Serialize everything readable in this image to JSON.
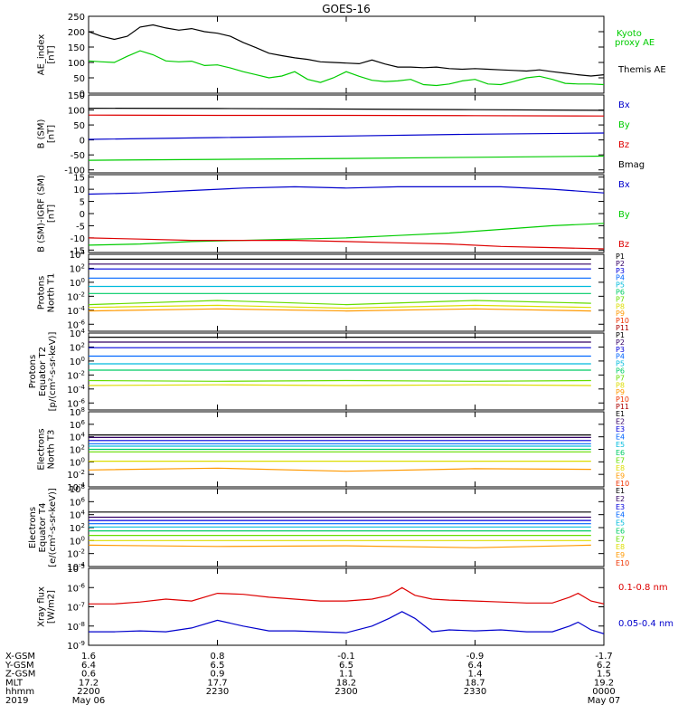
{
  "title": "GOES-16",
  "colors": {
    "black": "#000000",
    "green": "#00cc00",
    "blue": "#0000cc",
    "red": "#dd0000",
    "pcolors": [
      "#000000",
      "#330066",
      "#0000dd",
      "#0066ff",
      "#00bbdd",
      "#00cc66",
      "#66dd00",
      "#dddd00",
      "#ff9900",
      "#ee3300",
      "#aa0000"
    ],
    "ecolors": [
      "#000000",
      "#330066",
      "#0000dd",
      "#0066ff",
      "#00bbdd",
      "#00cc66",
      "#66dd00",
      "#dddd00",
      "#ff9900",
      "#ee3300"
    ]
  },
  "time_axis": {
    "ticks": [
      "2200",
      "2230",
      "2300",
      "2330",
      "0000"
    ],
    "rows": [
      {
        "label": "X-GSM",
        "values": [
          "1.6",
          "0.8",
          "-0.1",
          "-0.9",
          "-1.7"
        ]
      },
      {
        "label": "Y-GSM",
        "values": [
          "6.4",
          "6.5",
          "6.5",
          "6.4",
          "6.2"
        ]
      },
      {
        "label": "Z-GSM",
        "values": [
          "0.6",
          "0.9",
          "1.1",
          "1.4",
          "1.5"
        ]
      },
      {
        "label": "MLT",
        "values": [
          "17.2",
          "17.7",
          "18.2",
          "18.7",
          "19.2"
        ]
      },
      {
        "label": "hhmm",
        "values": [
          "2200",
          "2230",
          "2300",
          "2330",
          "0000"
        ]
      },
      {
        "label": "2019",
        "values": [
          "May 06",
          "",
          "",
          "",
          "May 07"
        ]
      }
    ]
  },
  "chart_data": [
    {
      "type": "line",
      "ylabel": [
        "AE_index",
        "[nT]"
      ],
      "ylim": [
        0,
        250
      ],
      "yticks": [
        "0",
        "50",
        "100",
        "150",
        "200",
        "250"
      ],
      "legend": [
        "Kyoto",
        "proxy AE",
        "Themis AE"
      ],
      "x_minutes": [
        0,
        3,
        6,
        9,
        12,
        15,
        18,
        21,
        24,
        27,
        30,
        33,
        36,
        39,
        42,
        45,
        48,
        51,
        54,
        57,
        60,
        63,
        66,
        69,
        72,
        75,
        78,
        81,
        84,
        87,
        90,
        93,
        96,
        99,
        102,
        105,
        108,
        111,
        114,
        117,
        120
      ],
      "series": [
        {
          "name": "Themis AE",
          "values": [
            200,
            185,
            175,
            185,
            215,
            222,
            212,
            205,
            210,
            200,
            195,
            185,
            165,
            148,
            130,
            122,
            115,
            110,
            102,
            100,
            98,
            96,
            108,
            95,
            85,
            85,
            83,
            85,
            80,
            78,
            80,
            78,
            76,
            74,
            72,
            76,
            70,
            65,
            60,
            56,
            60
          ]
        },
        {
          "name": "Kyoto proxy AE",
          "values": [
            105,
            102,
            100,
            120,
            138,
            125,
            105,
            102,
            104,
            90,
            92,
            82,
            70,
            60,
            50,
            56,
            70,
            45,
            35,
            50,
            70,
            55,
            42,
            38,
            40,
            45,
            28,
            25,
            30,
            40,
            45,
            30,
            28,
            38,
            50,
            55,
            45,
            32,
            30,
            30,
            28
          ]
        }
      ]
    },
    {
      "type": "line",
      "ylabel": [
        "B (SM)",
        "[nT]"
      ],
      "ylim": [
        -110,
        150
      ],
      "yticks": [
        "-100",
        "-50",
        "0",
        "50",
        "100",
        "150"
      ],
      "legend": [
        "Bx",
        "By",
        "Bz",
        "Bmag"
      ],
      "x_minutes": [
        0,
        30,
        60,
        90,
        120
      ],
      "series": [
        {
          "name": "Bx",
          "values": [
            2,
            8,
            13,
            19,
            23
          ]
        },
        {
          "name": "By",
          "values": [
            -68,
            -65,
            -62,
            -58,
            -54
          ]
        },
        {
          "name": "Bz",
          "values": [
            83,
            82,
            82,
            81,
            80
          ]
        },
        {
          "name": "Bmag",
          "values": [
            106,
            105,
            103,
            101,
            99
          ]
        }
      ]
    },
    {
      "type": "line",
      "ylabel": [
        "B (SM)-IGRF (SM)",
        "[nT]"
      ],
      "ylim": [
        -16,
        16
      ],
      "yticks": [
        "-15",
        "-10",
        "-5",
        "0",
        "5",
        "10",
        "15"
      ],
      "legend": [
        "Bx",
        "By",
        "Bz"
      ],
      "x_minutes": [
        0,
        12,
        24,
        36,
        48,
        60,
        72,
        84,
        96,
        108,
        120
      ],
      "series": [
        {
          "name": "Bx",
          "values": [
            8,
            8.5,
            9.5,
            10.5,
            11,
            10.5,
            11,
            11,
            11,
            10,
            8.5
          ]
        },
        {
          "name": "By",
          "values": [
            -13,
            -12.5,
            -11.5,
            -11,
            -10.5,
            -10,
            -9,
            -8,
            -6.5,
            -5,
            -4
          ]
        },
        {
          "name": "Bz",
          "values": [
            -10,
            -10.5,
            -11,
            -11,
            -11,
            -11.5,
            -12,
            -12.5,
            -13.5,
            -14,
            -14.5
          ]
        }
      ]
    },
    {
      "type": "line",
      "ylabel": [
        "Protons",
        "North T1"
      ],
      "yscale": "log",
      "ylim": [
        -7,
        4
      ],
      "yticks_exp": [
        4,
        2,
        0,
        -2,
        -4,
        -6
      ],
      "legend": [
        "P1",
        "P2",
        "P3",
        "P4",
        "P5",
        "P6",
        "P7",
        "P8",
        "P9",
        "P10",
        "P11"
      ],
      "x_minutes": [
        0,
        30,
        60,
        90,
        117
      ],
      "series": [
        {
          "name": "P1",
          "values": [
            3.3,
            3.3,
            3.3,
            3.3,
            3.3
          ]
        },
        {
          "name": "P2",
          "values": [
            2.6,
            2.6,
            2.6,
            2.6,
            2.6
          ]
        },
        {
          "name": "P3",
          "values": [
            1.9,
            1.9,
            1.9,
            1.9,
            1.9
          ]
        },
        {
          "name": "P4",
          "values": [
            0.6,
            0.6,
            0.6,
            0.6,
            0.6
          ]
        },
        {
          "name": "P5",
          "values": [
            -0.6,
            -0.6,
            -0.6,
            -0.6,
            -0.6
          ]
        },
        {
          "name": "P6",
          "values": [
            -1.6,
            -1.6,
            -1.6,
            -1.6,
            -1.6
          ]
        },
        {
          "name": "P7",
          "values": [
            -3.2,
            -2.6,
            -3.2,
            -2.6,
            -3.0
          ]
        },
        {
          "name": "P8",
          "values": [
            -3.6,
            -3.3,
            -3.7,
            -3.3,
            -3.6
          ]
        },
        {
          "name": "P9",
          "values": [
            -4.1,
            -3.8,
            -4.1,
            -3.8,
            -4.1
          ]
        }
      ]
    },
    {
      "type": "line",
      "ylabel": [
        "Protons",
        "Equator T2",
        "[p/(cm²-s-sr-keV)]"
      ],
      "yscale": "log",
      "ylim": [
        -7,
        4
      ],
      "yticks_exp": [
        4,
        2,
        0,
        -2,
        -4,
        -6
      ],
      "legend": [
        "P1",
        "P2",
        "P3",
        "P4",
        "P5",
        "P6",
        "P7",
        "P8",
        "P9",
        "P10",
        "P11"
      ],
      "x_minutes": [
        0,
        30,
        60,
        90,
        117
      ],
      "series": [
        {
          "name": "P1",
          "values": [
            3.4,
            3.4,
            3.4,
            3.4,
            3.4
          ]
        },
        {
          "name": "P2",
          "values": [
            2.7,
            2.7,
            2.7,
            2.7,
            2.7
          ]
        },
        {
          "name": "P3",
          "values": [
            1.9,
            1.9,
            1.9,
            1.9,
            1.9
          ]
        },
        {
          "name": "P4",
          "values": [
            0.7,
            0.7,
            0.7,
            0.7,
            0.7
          ]
        },
        {
          "name": "P5",
          "values": [
            -0.4,
            -0.4,
            -0.4,
            -0.4,
            -0.4
          ]
        },
        {
          "name": "P6",
          "values": [
            -1.3,
            -1.3,
            -1.3,
            -1.3,
            -1.3
          ]
        },
        {
          "name": "P7",
          "values": [
            -2.8,
            -2.9,
            -2.8,
            -2.9,
            -2.8
          ]
        },
        {
          "name": "P8",
          "values": [
            -3.5,
            -3.4,
            -3.5,
            -3.4,
            -3.5
          ]
        }
      ]
    },
    {
      "type": "line",
      "ylabel": [
        "Electrons",
        "North T3"
      ],
      "yscale": "log",
      "ylim": [
        -4,
        8
      ],
      "yticks_exp": [
        8,
        6,
        4,
        2,
        0,
        -2,
        -4
      ],
      "legend": [
        "E1",
        "E2",
        "E3",
        "E4",
        "E5",
        "E6",
        "E7",
        "E8",
        "E9",
        "E10"
      ],
      "x_minutes": [
        0,
        30,
        60,
        90,
        117
      ],
      "series": [
        {
          "name": "E1",
          "values": [
            4.3,
            4.3,
            4.3,
            4.3,
            4.3
          ]
        },
        {
          "name": "E2",
          "values": [
            3.9,
            3.9,
            3.9,
            3.9,
            3.9
          ]
        },
        {
          "name": "E3",
          "values": [
            3.4,
            3.4,
            3.4,
            3.4,
            3.4
          ]
        },
        {
          "name": "E4",
          "values": [
            2.9,
            2.9,
            2.9,
            2.9,
            2.9
          ]
        },
        {
          "name": "E5",
          "values": [
            2.5,
            2.5,
            2.5,
            2.5,
            2.5
          ]
        },
        {
          "name": "E6",
          "values": [
            2.0,
            2.0,
            2.0,
            2.0,
            2.0
          ]
        },
        {
          "name": "E7",
          "values": [
            1.6,
            1.6,
            1.6,
            1.6,
            1.6
          ]
        },
        {
          "name": "E8",
          "values": [
            0.1,
            0.1,
            0.1,
            0.1,
            0.1
          ]
        },
        {
          "name": "E9",
          "values": [
            -1.3,
            -1.0,
            -1.5,
            -1.1,
            -1.2
          ]
        }
      ]
    },
    {
      "type": "line",
      "ylabel": [
        "Electrons",
        "Equator T4",
        "[e/(cm²-s-sr-keV)]"
      ],
      "yscale": "log",
      "ylim": [
        -4,
        8
      ],
      "yticks_exp": [
        8,
        6,
        4,
        2,
        0,
        -2,
        -4
      ],
      "legend": [
        "E1",
        "E2",
        "E3",
        "E4",
        "E5",
        "E6",
        "E7",
        "E8",
        "E9",
        "E10"
      ],
      "x_minutes": [
        0,
        30,
        60,
        90,
        117
      ],
      "series": [
        {
          "name": "E1",
          "values": [
            4.4,
            4.4,
            4.4,
            4.4,
            4.4
          ]
        },
        {
          "name": "E2",
          "values": [
            3.6,
            3.6,
            3.6,
            3.6,
            3.6
          ]
        },
        {
          "name": "E3",
          "values": [
            3.1,
            3.1,
            3.1,
            3.1,
            3.1
          ]
        },
        {
          "name": "E4",
          "values": [
            2.6,
            2.6,
            2.6,
            2.6,
            2.6
          ]
        },
        {
          "name": "E5",
          "values": [
            2.1,
            2.1,
            2.1,
            2.1,
            2.1
          ]
        },
        {
          "name": "E6",
          "values": [
            1.5,
            1.5,
            1.5,
            1.5,
            1.5
          ]
        },
        {
          "name": "E7",
          "values": [
            0.8,
            0.8,
            0.8,
            0.8,
            0.8
          ]
        },
        {
          "name": "E8",
          "values": [
            0.0,
            0.0,
            0.0,
            0.0,
            0.0
          ]
        },
        {
          "name": "E9",
          "values": [
            -0.7,
            -0.9,
            -0.8,
            -1.1,
            -0.7
          ]
        }
      ]
    },
    {
      "type": "line",
      "ylabel": [
        "Xray flux",
        "[W/m2]"
      ],
      "yscale": "log",
      "ylim": [
        -9,
        -5
      ],
      "yticks_exp": [
        -5,
        -6,
        -7,
        -8,
        -9
      ],
      "legend": [
        "0.1-0.8 nm",
        "0.05-0.4 nm"
      ],
      "x_minutes": [
        0,
        6,
        12,
        18,
        24,
        30,
        36,
        42,
        48,
        54,
        60,
        66,
        70,
        73,
        76,
        80,
        84,
        90,
        96,
        102,
        108,
        112,
        114,
        117,
        120
      ],
      "series": [
        {
          "name": "0.1-0.8 nm",
          "values": [
            -6.85,
            -6.85,
            -6.75,
            -6.6,
            -6.7,
            -6.3,
            -6.35,
            -6.5,
            -6.6,
            -6.7,
            -6.7,
            -6.6,
            -6.4,
            -6.0,
            -6.4,
            -6.6,
            -6.65,
            -6.7,
            -6.75,
            -6.8,
            -6.8,
            -6.5,
            -6.3,
            -6.7,
            -6.85
          ]
        },
        {
          "name": "0.05-0.4 nm",
          "values": [
            -8.3,
            -8.3,
            -8.25,
            -8.3,
            -8.1,
            -7.7,
            -8.0,
            -8.25,
            -8.25,
            -8.3,
            -8.35,
            -8.0,
            -7.6,
            -7.25,
            -7.6,
            -8.3,
            -8.2,
            -8.25,
            -8.2,
            -8.3,
            -8.3,
            -8.0,
            -7.8,
            -8.2,
            -8.4
          ]
        }
      ]
    }
  ]
}
